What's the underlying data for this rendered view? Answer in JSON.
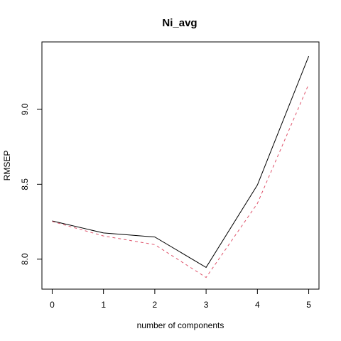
{
  "chart_data": {
    "type": "line",
    "title": "Ni_avg",
    "xlabel": "number of components",
    "ylabel": "RMSEP",
    "x": [
      0,
      1,
      2,
      3,
      4,
      5
    ],
    "xlim": [
      -0.2,
      5.2
    ],
    "ylim": [
      7.8,
      9.45
    ],
    "xticks": [
      0,
      1,
      2,
      3,
      4,
      5
    ],
    "yticks": [
      8.0,
      8.5,
      9.0
    ],
    "ytick_labels": [
      "8.0",
      "8.5",
      "9.0"
    ],
    "grid": false,
    "series": [
      {
        "values": [
          8.255,
          8.175,
          8.148,
          7.945,
          8.495,
          9.355
        ],
        "color": "#000000",
        "style": "solid"
      },
      {
        "values": [
          8.252,
          8.155,
          8.097,
          7.878,
          8.372,
          9.168
        ],
        "color": "#DF536B",
        "style": "dashed"
      }
    ]
  }
}
